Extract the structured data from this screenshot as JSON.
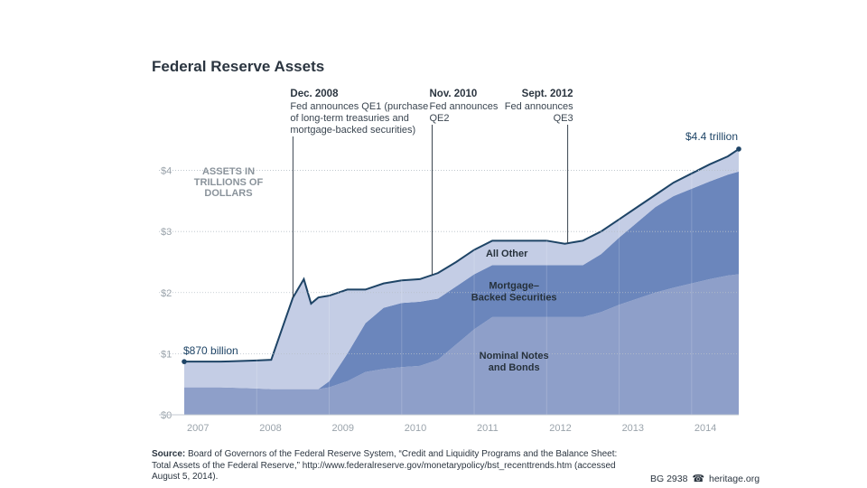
{
  "chart_data": {
    "type": "area",
    "stacked": true,
    "title": "Federal Reserve Assets",
    "unit_label": [
      "ASSETS IN",
      "TRILLIONS OF",
      "DOLLARS"
    ],
    "y_ticks": [
      "$0",
      "$1",
      "$2",
      "$3",
      "$4"
    ],
    "ylim": [
      0,
      4.6
    ],
    "x_ticks": [
      "2007",
      "2008",
      "2009",
      "2010",
      "2011",
      "2012",
      "2013",
      "2014"
    ],
    "xlim": [
      2007.0,
      2014.65
    ],
    "x": [
      2007.0,
      2007.5,
      2008.0,
      2008.2,
      2008.5,
      2008.65,
      2008.75,
      2008.85,
      2009.0,
      2009.25,
      2009.5,
      2009.75,
      2010.0,
      2010.25,
      2010.5,
      2010.75,
      2011.0,
      2011.25,
      2011.5,
      2011.75,
      2012.0,
      2012.25,
      2012.5,
      2012.75,
      2013.0,
      2013.25,
      2013.5,
      2013.75,
      2014.0,
      2014.25,
      2014.5,
      2014.65
    ],
    "series": [
      {
        "name": "Nominal Notes and Bonds",
        "label_lines": [
          "Nominal Notes",
          "and Bonds"
        ],
        "color": "#8e9fc9",
        "values": [
          0.45,
          0.45,
          0.43,
          0.42,
          0.42,
          0.42,
          0.42,
          0.42,
          0.45,
          0.55,
          0.7,
          0.75,
          0.78,
          0.8,
          0.9,
          1.15,
          1.4,
          1.6,
          1.6,
          1.6,
          1.6,
          1.6,
          1.6,
          1.68,
          1.8,
          1.9,
          2.0,
          2.08,
          2.15,
          2.22,
          2.28,
          2.3
        ]
      },
      {
        "name": "Mortgage-Backed Securities",
        "label_lines": [
          "Mortgage–",
          "Backed Securities"
        ],
        "color": "#6b86bc",
        "values": [
          0.0,
          0.0,
          0.0,
          0.0,
          0.0,
          0.0,
          0.0,
          0.0,
          0.1,
          0.45,
          0.8,
          1.0,
          1.05,
          1.05,
          1.0,
          0.95,
          0.9,
          0.85,
          0.85,
          0.85,
          0.85,
          0.85,
          0.85,
          0.95,
          1.1,
          1.25,
          1.4,
          1.5,
          1.55,
          1.6,
          1.65,
          1.68
        ]
      },
      {
        "name": "All Other",
        "label_lines": [
          "All Other"
        ],
        "color": "#c4cde5",
        "values": [
          0.42,
          0.42,
          0.46,
          0.48,
          1.5,
          1.8,
          1.4,
          1.5,
          1.4,
          1.05,
          0.55,
          0.4,
          0.37,
          0.37,
          0.42,
          0.4,
          0.4,
          0.4,
          0.4,
          0.4,
          0.4,
          0.35,
          0.4,
          0.37,
          0.3,
          0.25,
          0.2,
          0.22,
          0.25,
          0.28,
          0.3,
          0.37
        ]
      }
    ],
    "total_line_color": "#1e4466",
    "start_label": "$870 billion",
    "end_label": "$4.4 trillion",
    "annotations": [
      {
        "x": 2008.5,
        "head": "Dec. 2008",
        "lines": [
          "Fed announces QE1 (purchase",
          "of long-term treasuries and",
          "mortgage-backed securities)"
        ],
        "align": "start"
      },
      {
        "x": 2010.42,
        "head": "Nov. 2010",
        "lines": [
          "Fed announces",
          "QE2"
        ],
        "align": "start"
      },
      {
        "x": 2012.29,
        "head": "Sept. 2012",
        "lines": [
          "Fed announces",
          "QE3"
        ],
        "align": "end"
      }
    ]
  },
  "source": {
    "label": "Source:",
    "text": "Board of Governors of the Federal Reserve System, “Credit and Liquidity Programs and the Balance Sheet: Total Assets of the Federal Reserve,” http://www.federalreserve.gov/monetarypolicy/bst_recenttrends.htm (accessed August 5, 2014)."
  },
  "footer": {
    "id": "BG 2938",
    "site": "heritage.org"
  }
}
